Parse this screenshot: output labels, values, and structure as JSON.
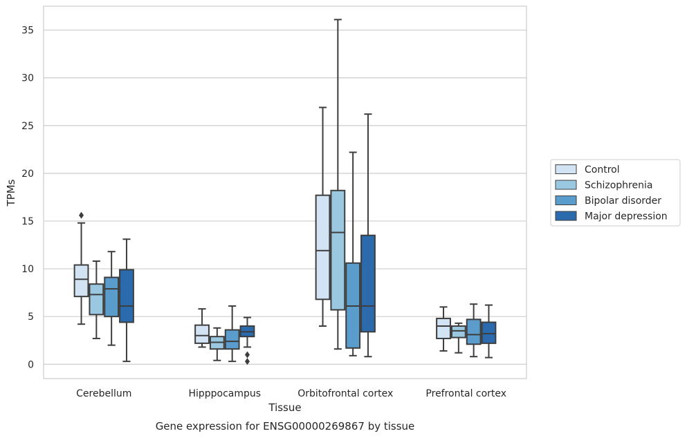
{
  "caption": "Gene expression for ENSG00000269867 by tissue",
  "chart_data": {
    "type": "box",
    "xlabel": "Tissue",
    "ylabel": "TPMs",
    "ylim": [
      -1.5,
      37.5
    ],
    "yticks": [
      0,
      5,
      10,
      15,
      20,
      25,
      30,
      35
    ],
    "grid": "horizontal",
    "legend_position": "right",
    "categories": [
      "Cerebellum",
      "Hipppocampus",
      "Orbitofrontal cortex",
      "Prefrontal cortex"
    ],
    "series": [
      {
        "name": "Control",
        "color": "#d2e3f3",
        "boxes": [
          {
            "whisker_low": 4.2,
            "q1": 7.1,
            "median": 8.9,
            "q3": 10.4,
            "whisker_high": 14.8,
            "outliers": [
              15.6
            ]
          },
          {
            "whisker_low": 1.8,
            "q1": 2.2,
            "median": 3.0,
            "q3": 4.1,
            "whisker_high": 5.8,
            "outliers": []
          },
          {
            "whisker_low": 4.0,
            "q1": 6.8,
            "median": 11.9,
            "q3": 17.7,
            "whisker_high": 26.9,
            "outliers": []
          },
          {
            "whisker_low": 1.4,
            "q1": 2.7,
            "median": 4.0,
            "q3": 4.8,
            "whisker_high": 6.0,
            "outliers": []
          }
        ]
      },
      {
        "name": "Schizophrenia",
        "color": "#9ac8e0",
        "boxes": [
          {
            "whisker_low": 2.7,
            "q1": 5.2,
            "median": 7.3,
            "q3": 8.4,
            "whisker_high": 10.8,
            "outliers": []
          },
          {
            "whisker_low": 0.4,
            "q1": 1.6,
            "median": 2.3,
            "q3": 2.9,
            "whisker_high": 3.8,
            "outliers": []
          },
          {
            "whisker_low": 1.6,
            "q1": 5.7,
            "median": 13.8,
            "q3": 18.2,
            "whisker_high": 36.1,
            "outliers": []
          },
          {
            "whisker_low": 1.2,
            "q1": 2.8,
            "median": 3.5,
            "q3": 4.0,
            "whisker_high": 4.3,
            "outliers": []
          }
        ]
      },
      {
        "name": "Bipolar disorder",
        "color": "#5a9ccc",
        "boxes": [
          {
            "whisker_low": 2.0,
            "q1": 5.0,
            "median": 7.9,
            "q3": 9.1,
            "whisker_high": 11.8,
            "outliers": []
          },
          {
            "whisker_low": 0.3,
            "q1": 1.6,
            "median": 2.4,
            "q3": 3.6,
            "whisker_high": 6.1,
            "outliers": []
          },
          {
            "whisker_low": 0.9,
            "q1": 1.7,
            "median": 6.1,
            "q3": 10.6,
            "whisker_high": 22.2,
            "outliers": []
          },
          {
            "whisker_low": 0.8,
            "q1": 2.1,
            "median": 3.1,
            "q3": 4.7,
            "whisker_high": 6.3,
            "outliers": []
          }
        ]
      },
      {
        "name": "Major depression",
        "color": "#2a6aad",
        "boxes": [
          {
            "whisker_low": 0.3,
            "q1": 4.4,
            "median": 6.1,
            "q3": 9.9,
            "whisker_high": 13.1,
            "outliers": []
          },
          {
            "whisker_low": 1.8,
            "q1": 2.9,
            "median": 3.4,
            "q3": 4.0,
            "whisker_high": 4.9,
            "outliers": [
              1.0,
              0.3
            ]
          },
          {
            "whisker_low": 0.8,
            "q1": 3.4,
            "median": 6.1,
            "q3": 13.5,
            "whisker_high": 26.2,
            "outliers": []
          },
          {
            "whisker_low": 0.7,
            "q1": 2.2,
            "median": 3.2,
            "q3": 4.4,
            "whisker_high": 6.2,
            "outliers": []
          }
        ]
      }
    ]
  }
}
